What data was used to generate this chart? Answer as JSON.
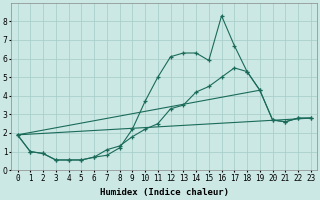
{
  "title": "",
  "xlabel": "Humidex (Indice chaleur)",
  "ylabel": "",
  "background_color": "#cce8e4",
  "grid_color": "#aacfcb",
  "line_color": "#1a6b5a",
  "ylim": [
    0,
    9
  ],
  "xlim": [
    -0.5,
    23.5
  ],
  "series1_x": [
    0,
    1,
    2,
    3,
    4,
    5,
    6,
    7,
    8,
    9,
    10,
    11,
    12,
    13,
    14,
    15,
    16,
    17,
    18,
    19,
    20,
    21,
    22,
    23
  ],
  "series1_y": [
    1.9,
    1.0,
    0.9,
    0.55,
    0.55,
    0.55,
    0.7,
    0.8,
    1.2,
    2.2,
    3.7,
    5.0,
    6.1,
    6.3,
    6.3,
    5.9,
    8.3,
    6.7,
    5.3,
    4.3,
    2.7,
    2.6,
    2.8,
    2.8
  ],
  "series2_x": [
    0,
    1,
    2,
    3,
    4,
    5,
    6,
    7,
    8,
    9,
    10,
    11,
    12,
    13,
    14,
    15,
    16,
    17,
    18,
    19,
    20,
    21,
    22,
    23
  ],
  "series2_y": [
    1.9,
    1.0,
    0.9,
    0.55,
    0.55,
    0.55,
    0.7,
    1.1,
    1.3,
    1.8,
    2.2,
    2.5,
    3.3,
    3.5,
    4.2,
    4.5,
    5.0,
    5.5,
    5.3,
    4.3,
    2.7,
    2.6,
    2.8,
    2.8
  ],
  "series3_x": [
    0,
    23
  ],
  "series3_y": [
    1.9,
    2.8
  ],
  "series4_x": [
    0,
    19
  ],
  "series4_y": [
    1.9,
    4.3
  ]
}
